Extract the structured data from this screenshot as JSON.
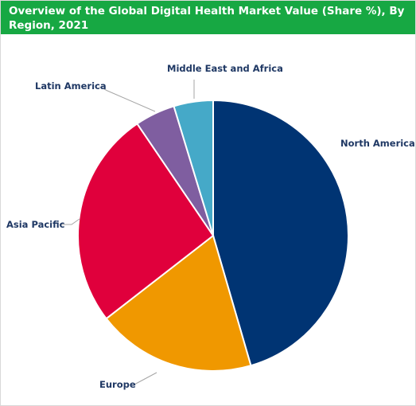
{
  "title": "Overview of the Global Digital Health Market Value (Share %), By Region, 2021",
  "chart_data": {
    "type": "pie",
    "title": "Overview of the Global Digital Health Market Value (Share %), By Region, 2021",
    "slices": [
      {
        "label": "North America",
        "value": 45.5,
        "color": "#003473"
      },
      {
        "label": "Europe",
        "value": 19.0,
        "color": "#f09800"
      },
      {
        "label": "Asia Pacific",
        "value": 26.0,
        "color": "#e0003c"
      },
      {
        "label": "Latin America",
        "value": 4.8,
        "color": "#7f5ea0"
      },
      {
        "label": "Middle East and Africa",
        "value": 4.7,
        "color": "#45a9c8"
      }
    ],
    "start": "12 o'clock",
    "direction": "clockwise",
    "legend": "none"
  }
}
